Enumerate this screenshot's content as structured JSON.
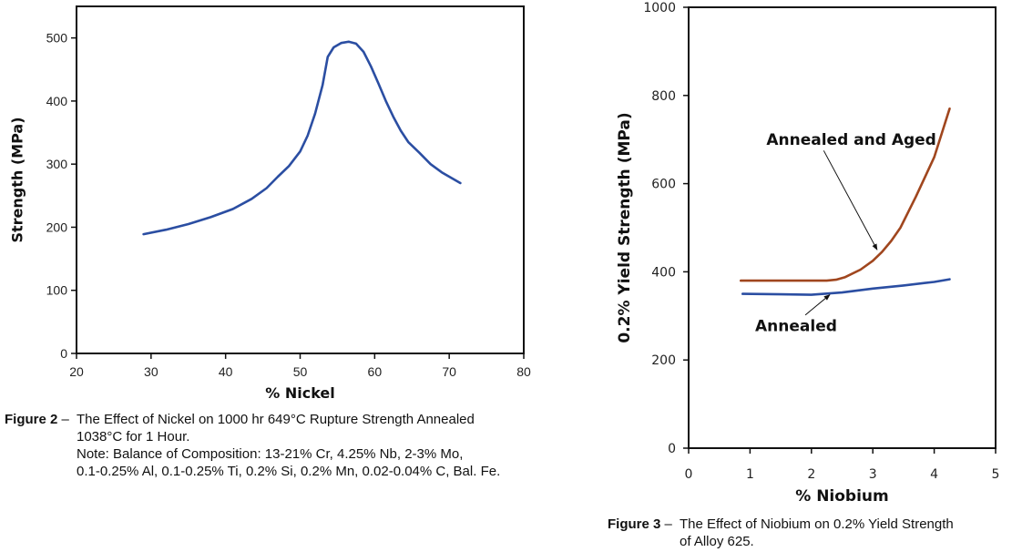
{
  "chart_data": [
    {
      "type": "line",
      "xlabel": "% Nickel",
      "ylabel": "Strength (MPa)",
      "xlim": [
        20,
        80
      ],
      "ylim": [
        0,
        550
      ],
      "xticks": [
        20,
        30,
        40,
        50,
        60,
        70,
        80
      ],
      "yticks": [
        0,
        100,
        200,
        300,
        400,
        500
      ],
      "grid": false,
      "series": [
        {
          "color": "#2b4ea2",
          "x": [
            29,
            32,
            35,
            38,
            41,
            43.5,
            45.5,
            47,
            48.5,
            50,
            51,
            52,
            53,
            53.7,
            54.5,
            55.5,
            56.5,
            57.5,
            58.5,
            59.5,
            60.5,
            61.5,
            62.5,
            63.5,
            64.5,
            66,
            67.5,
            69,
            71.5
          ],
          "y": [
            189,
            196,
            205,
            216,
            229,
            245,
            262,
            280,
            297,
            320,
            345,
            380,
            425,
            470,
            485,
            492,
            494,
            491,
            478,
            455,
            428,
            400,
            375,
            353,
            335,
            318,
            300,
            287,
            270
          ]
        }
      ],
      "caption": {
        "label": "Figure 2",
        "dash": " – ",
        "lines": [
          "The Effect of Nickel on 1000 hr 649°C Rupture Strength Annealed",
          "1038°C for 1 Hour.",
          "Note: Balance of Composition: 13-21% Cr, 4.25% Nb, 2-3% Mo,",
          "0.1-0.25% Al, 0.1-0.25% Ti, 0.2% Si, 0.2% Mn, 0.02-0.04% C, Bal. Fe."
        ]
      }
    },
    {
      "type": "line",
      "xlabel": "% Niobium",
      "ylabel": "0.2% Yield Strength (MPa)",
      "xlim": [
        0,
        5
      ],
      "ylim": [
        0,
        1000
      ],
      "xticks": [
        0,
        1,
        2,
        3,
        4,
        5
      ],
      "yticks": [
        0,
        200,
        400,
        600,
        800,
        1000
      ],
      "grid": false,
      "series": [
        {
          "name": "Annealed and Aged",
          "color": "#a0461e",
          "x": [
            0.85,
            1.5,
            2.25,
            2.4,
            2.55,
            2.8,
            3.0,
            3.15,
            3.3,
            3.45,
            3.7,
            4.0,
            4.25
          ],
          "y": [
            380,
            380,
            380,
            382,
            388,
            405,
            425,
            445,
            470,
            500,
            570,
            660,
            770
          ]
        },
        {
          "name": "Annealed",
          "color": "#2b4ea2",
          "x": [
            0.88,
            1.5,
            2.0,
            2.5,
            3.0,
            3.5,
            4.0,
            4.25
          ],
          "y": [
            350,
            349,
            348,
            353,
            362,
            369,
            377,
            383
          ]
        }
      ],
      "annotations": [
        {
          "text": "Annealed and Aged",
          "label_at": [
            2.65,
            688
          ],
          "arrow_from": [
            2.2,
            675
          ],
          "arrow_to": [
            3.07,
            450
          ]
        },
        {
          "text": "Annealed",
          "label_at": [
            1.75,
            265
          ],
          "arrow_from": [
            1.9,
            302
          ],
          "arrow_to": [
            2.3,
            348
          ]
        }
      ],
      "caption": {
        "label": "Figure 3",
        "dash": " – ",
        "lines": [
          "The Effect of Niobium on 0.2% Yield Strength",
          "of Alloy 625."
        ]
      }
    }
  ]
}
